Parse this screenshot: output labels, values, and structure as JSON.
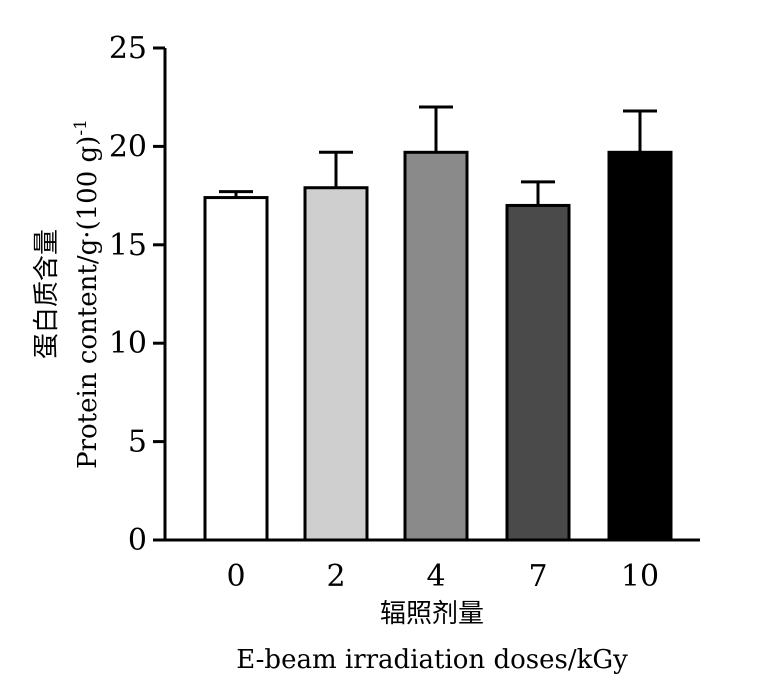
{
  "chart_data": {
    "type": "bar",
    "categories": [
      "0",
      "2",
      "4",
      "7",
      "10"
    ],
    "values": [
      17.4,
      17.9,
      19.7,
      17.0,
      19.7
    ],
    "errors": [
      0.3,
      1.8,
      2.3,
      1.2,
      2.1
    ],
    "colors": [
      "#ffffff",
      "#cfcfcf",
      "#8a8a8a",
      "#4a4a4a",
      "#000000"
    ],
    "ylim": [
      0,
      25
    ],
    "yticks": [
      "0",
      "5",
      "10",
      "15",
      "20",
      "25"
    ],
    "xlabel_cn": "辐照剂量",
    "xlabel_en": "E-beam irradiation doses/kGy",
    "ylabel_cn": "蛋白质含量",
    "ylabel_en": "Protein content/g·(100 g)",
    "ylabel_sup": "-1",
    "grid": false,
    "legend": "none"
  }
}
